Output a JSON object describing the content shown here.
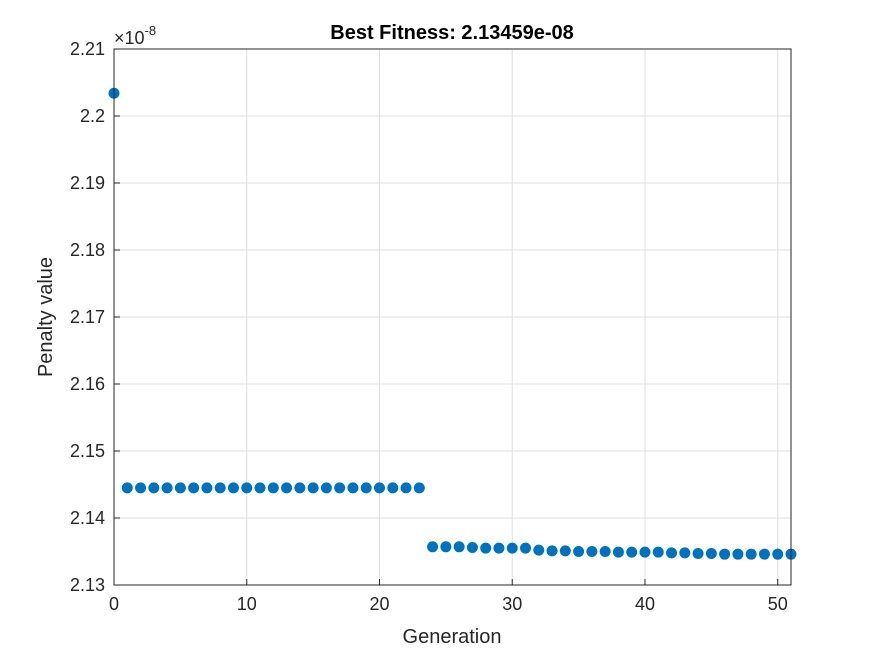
{
  "chart_data": {
    "type": "scatter",
    "title": "Best Fitness: 2.13459e-08",
    "xlabel": "Generation",
    "ylabel": "Penalty value",
    "exponent_base": "×10",
    "exponent_power": "-8",
    "xlim": [
      0,
      51
    ],
    "ylim": [
      2.13,
      2.21
    ],
    "xticks": [
      0,
      10,
      20,
      30,
      40,
      50
    ],
    "xtick_labels": [
      "0",
      "10",
      "20",
      "30",
      "40",
      "50"
    ],
    "yticks": [
      2.13,
      2.14,
      2.15,
      2.16,
      2.17,
      2.18,
      2.19,
      2.2,
      2.21
    ],
    "ytick_labels": [
      "2.13",
      "2.14",
      "2.15",
      "2.16",
      "2.17",
      "2.18",
      "2.19",
      "2.2",
      "2.21"
    ],
    "grid": true,
    "marker_color": "#0072BD",
    "series": [
      {
        "x": [
          0,
          1,
          2,
          3,
          4,
          5,
          6,
          7,
          8,
          9,
          10,
          11,
          12,
          13,
          14,
          15,
          16,
          17,
          18,
          19,
          20,
          21,
          22,
          23,
          24,
          25,
          26,
          27,
          28,
          29,
          30,
          31,
          32,
          33,
          34,
          35,
          36,
          37,
          38,
          39,
          40,
          41,
          42,
          43,
          44,
          45,
          46,
          47,
          48,
          49,
          50,
          51
        ],
        "y": [
          2.2034,
          2.1445,
          2.1445,
          2.1445,
          2.1445,
          2.1445,
          2.1445,
          2.1445,
          2.1445,
          2.1445,
          2.1445,
          2.1445,
          2.1445,
          2.1445,
          2.1445,
          2.1445,
          2.1445,
          2.1445,
          2.1445,
          2.1445,
          2.1445,
          2.1445,
          2.1445,
          2.1445,
          2.1357,
          2.1357,
          2.1357,
          2.1356,
          2.1355,
          2.1355,
          2.1355,
          2.1355,
          2.1352,
          2.1351,
          2.1351,
          2.135,
          2.135,
          2.135,
          2.1349,
          2.1349,
          2.1349,
          2.1349,
          2.1348,
          2.1348,
          2.1347,
          2.1347,
          2.1346,
          2.1346,
          2.1346,
          2.1346,
          2.1346,
          2.1346
        ]
      }
    ]
  }
}
